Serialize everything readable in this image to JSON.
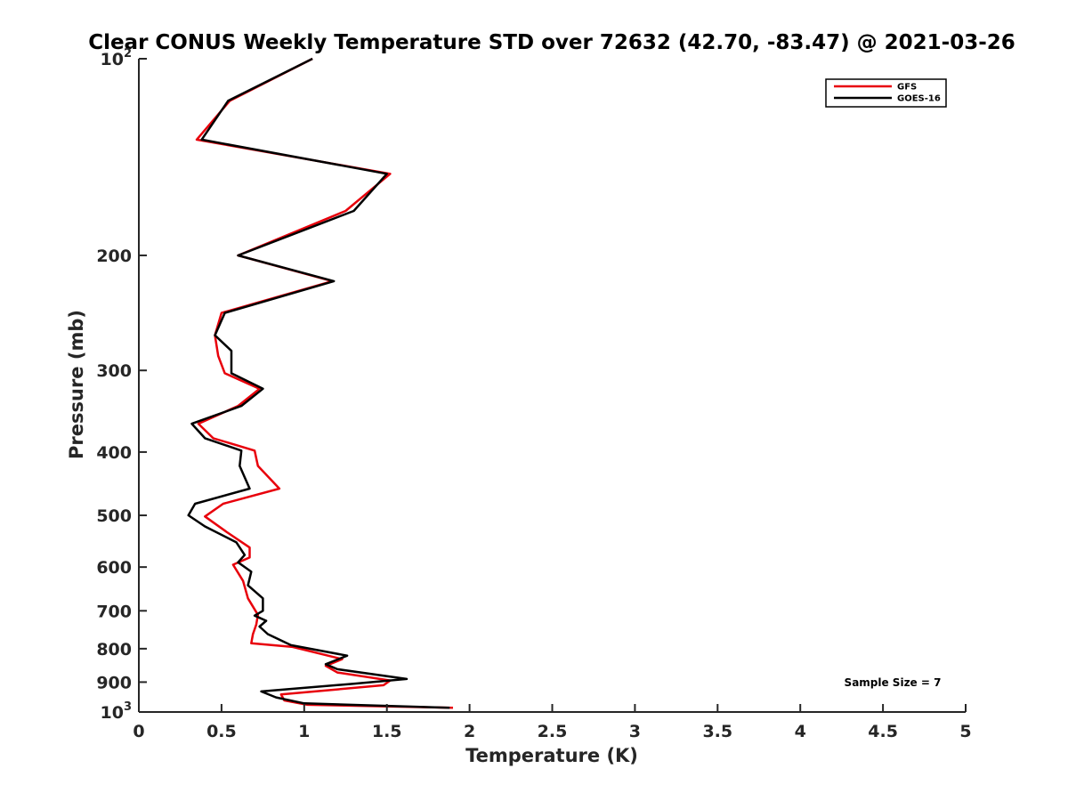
{
  "chart_data": {
    "type": "line",
    "title": "Clear CONUS Weekly Temperature STD over 72632 (42.70, -83.47) @ 2021-03-26",
    "xlabel": "Temperature (K)",
    "ylabel": "Pressure (mb)",
    "xlim": [
      0,
      5
    ],
    "ylim": [
      100,
      1000
    ],
    "y_scale": "log",
    "y_reversed": true,
    "x_ticks": [
      "0",
      "0.5",
      "1",
      "1.5",
      "2",
      "2.5",
      "3",
      "3.5",
      "4",
      "4.5",
      "5"
    ],
    "y_ticks": [
      {
        "value": 100,
        "base": "10",
        "exp": "2"
      },
      {
        "value": 200,
        "label": "200"
      },
      {
        "value": 300,
        "label": "300"
      },
      {
        "value": 400,
        "label": "400"
      },
      {
        "value": 500,
        "label": "500"
      },
      {
        "value": 600,
        "label": "600"
      },
      {
        "value": 700,
        "label": "700"
      },
      {
        "value": 800,
        "label": "800"
      },
      {
        "value": 900,
        "label": "900"
      },
      {
        "value": 1000,
        "base": "10",
        "exp": "3"
      }
    ],
    "legend_position": "top-right",
    "annotation": "Sample Size = 7",
    "series": [
      {
        "name": "GFS",
        "color": "#e8000b",
        "points": [
          [
            1.05,
            100
          ],
          [
            0.55,
            116
          ],
          [
            0.35,
            133
          ],
          [
            1.52,
            150
          ],
          [
            1.25,
            171
          ],
          [
            0.6,
            200
          ],
          [
            1.17,
            219
          ],
          [
            0.5,
            245
          ],
          [
            0.46,
            265
          ],
          [
            0.48,
            285
          ],
          [
            0.52,
            303
          ],
          [
            0.73,
            320
          ],
          [
            0.6,
            340
          ],
          [
            0.36,
            362
          ],
          [
            0.45,
            381
          ],
          [
            0.7,
            398
          ],
          [
            0.72,
            420
          ],
          [
            0.85,
            455
          ],
          [
            0.51,
            480
          ],
          [
            0.4,
            502
          ],
          [
            0.53,
            530
          ],
          [
            0.67,
            560
          ],
          [
            0.67,
            580
          ],
          [
            0.57,
            595
          ],
          [
            0.63,
            630
          ],
          [
            0.66,
            670
          ],
          [
            0.72,
            710
          ],
          [
            0.71,
            735
          ],
          [
            0.69,
            760
          ],
          [
            0.68,
            785
          ],
          [
            0.93,
            795
          ],
          [
            1.23,
            830
          ],
          [
            1.13,
            850
          ],
          [
            1.2,
            870
          ],
          [
            1.52,
            895
          ],
          [
            1.48,
            910
          ],
          [
            0.86,
            940
          ],
          [
            0.88,
            960
          ],
          [
            1.02,
            975
          ],
          [
            1.9,
            985
          ]
        ]
      },
      {
        "name": "GOES-16",
        "color": "#000000",
        "points": [
          [
            1.05,
            100
          ],
          [
            0.54,
            116
          ],
          [
            0.38,
            133
          ],
          [
            1.5,
            150
          ],
          [
            1.3,
            171
          ],
          [
            0.6,
            200
          ],
          [
            1.18,
            219
          ],
          [
            0.52,
            245
          ],
          [
            0.46,
            265
          ],
          [
            0.56,
            280
          ],
          [
            0.56,
            303
          ],
          [
            0.75,
            320
          ],
          [
            0.62,
            340
          ],
          [
            0.32,
            362
          ],
          [
            0.4,
            381
          ],
          [
            0.62,
            398
          ],
          [
            0.61,
            420
          ],
          [
            0.67,
            455
          ],
          [
            0.34,
            480
          ],
          [
            0.3,
            500
          ],
          [
            0.4,
            520
          ],
          [
            0.59,
            550
          ],
          [
            0.64,
            575
          ],
          [
            0.6,
            590
          ],
          [
            0.68,
            610
          ],
          [
            0.66,
            640
          ],
          [
            0.75,
            670
          ],
          [
            0.75,
            700
          ],
          [
            0.7,
            712
          ],
          [
            0.77,
            725
          ],
          [
            0.73,
            740
          ],
          [
            0.78,
            760
          ],
          [
            0.92,
            790
          ],
          [
            1.26,
            820
          ],
          [
            1.13,
            845
          ],
          [
            1.2,
            860
          ],
          [
            1.62,
            890
          ],
          [
            1.3,
            905
          ],
          [
            0.74,
            930
          ],
          [
            0.83,
            950
          ],
          [
            1.0,
            970
          ],
          [
            1.88,
            985
          ]
        ]
      }
    ]
  }
}
